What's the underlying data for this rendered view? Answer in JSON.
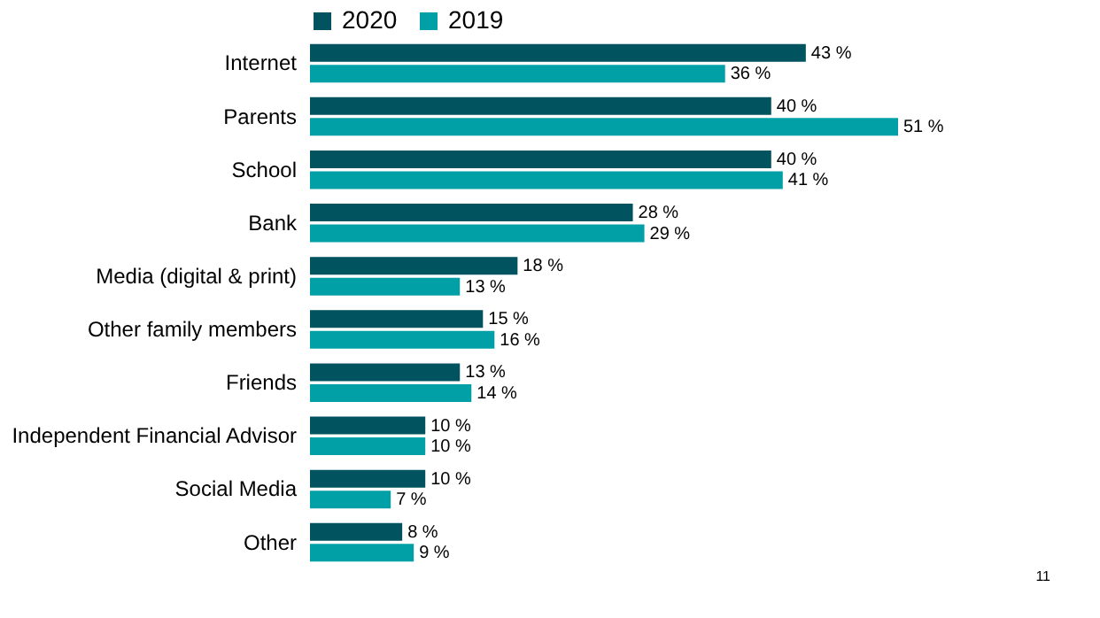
{
  "chart_data": {
    "type": "bar",
    "orientation": "horizontal",
    "categories": [
      "Internet",
      "Parents",
      "School",
      "Bank",
      "Media (digital & print)",
      "Other family members",
      "Friends",
      "Independent Financial Advisor",
      "Social Media",
      "Other"
    ],
    "series": [
      {
        "name": "2020",
        "color": "#00535f",
        "values": [
          43,
          40,
          40,
          28,
          18,
          15,
          13,
          10,
          10,
          8
        ],
        "value_labels": [
          "43 %",
          "40 %",
          "40 %",
          "28 %",
          "18 %",
          "15 %",
          "13 %",
          "10 %",
          "10 %",
          "8 %"
        ]
      },
      {
        "name": "2019",
        "color": "#00a0a6",
        "values": [
          36,
          51,
          41,
          29,
          13,
          16,
          14,
          10,
          7,
          9
        ],
        "value_labels": [
          "36 %",
          "51 %",
          "41 %",
          "29 %",
          "13 %",
          "16 %",
          "14 %",
          "10 %",
          "7 %",
          "9 %"
        ]
      }
    ],
    "legend": "top",
    "tick_labels": "y",
    "annotations": [
      "11"
    ]
  }
}
